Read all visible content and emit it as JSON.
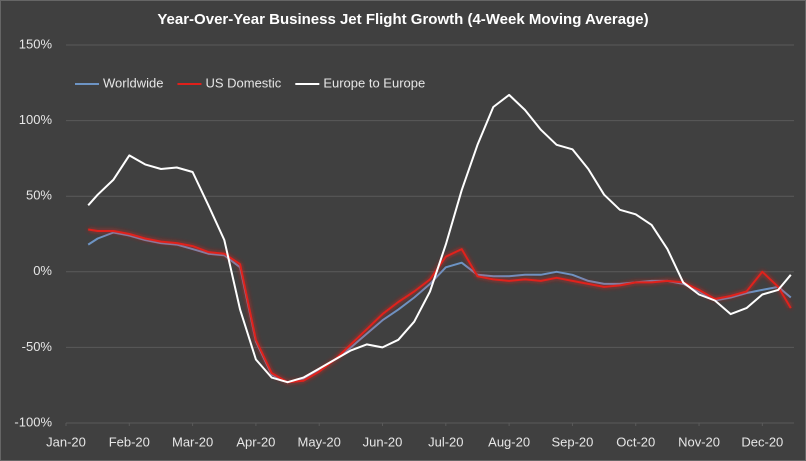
{
  "chart_data": {
    "type": "line",
    "title": "Year-Over-Year Business Jet Flight Growth (4-Week Moving Average)",
    "x": [
      0.35,
      0.5,
      0.75,
      1.0,
      1.25,
      1.5,
      1.75,
      2.0,
      2.25,
      2.5,
      2.75,
      3.0,
      3.25,
      3.5,
      3.75,
      4.0,
      4.25,
      4.5,
      4.75,
      5.0,
      5.25,
      5.5,
      5.75,
      6.0,
      6.25,
      6.5,
      6.75,
      7.0,
      7.25,
      7.5,
      7.75,
      8.0,
      8.25,
      8.5,
      8.75,
      9.0,
      9.25,
      9.5,
      9.75,
      10.0,
      10.25,
      10.5,
      10.75,
      11.0,
      11.25,
      11.45
    ],
    "series": [
      {
        "name": "Worldwide",
        "color": "#6d94c4",
        "values": [
          18,
          22,
          26,
          24,
          21,
          19,
          18,
          15,
          12,
          11,
          3,
          -46,
          -68,
          -73,
          -71,
          -65,
          -58,
          -50,
          -41,
          -32,
          -25,
          -17,
          -8,
          3,
          6,
          -2,
          -3,
          -3,
          -2,
          -2,
          0,
          -2,
          -6,
          -8,
          -8,
          -7,
          -6,
          -6,
          -8,
          -13,
          -19,
          -17,
          -14,
          -12,
          -10,
          -17
        ]
      },
      {
        "name": "US Domestic",
        "color": "#e0201a",
        "values": [
          28,
          27,
          27,
          25,
          22,
          20,
          19,
          17,
          13,
          12,
          5,
          -45,
          -67,
          -73,
          -72,
          -66,
          -58,
          -48,
          -38,
          -28,
          -20,
          -13,
          -5,
          10,
          15,
          -3,
          -5,
          -6,
          -5,
          -6,
          -4,
          -6,
          -8,
          -10,
          -9,
          -7,
          -7,
          -6,
          -7,
          -12,
          -18,
          -16,
          -13,
          0,
          -10,
          -24
        ]
      },
      {
        "name": "Europe to Europe",
        "color": "#ffffff",
        "values": [
          44,
          51,
          61,
          77,
          71,
          68,
          69,
          66,
          44,
          21,
          -25,
          -58,
          -70,
          -73,
          -70,
          -64,
          -58,
          -52,
          -48,
          -50,
          -45,
          -33,
          -13,
          18,
          54,
          84,
          109,
          117,
          107,
          94,
          84,
          81,
          68,
          51,
          41,
          38,
          31,
          15,
          -7,
          -15,
          -19,
          -28,
          -24,
          -15,
          -12,
          -2
        ]
      }
    ],
    "xlim": [
      0,
      11.5
    ],
    "xticks": [
      {
        "value": 0,
        "label": "Jan-20"
      },
      {
        "value": 1,
        "label": "Feb-20"
      },
      {
        "value": 2,
        "label": "Mar-20"
      },
      {
        "value": 3,
        "label": "Apr-20"
      },
      {
        "value": 4,
        "label": "May-20"
      },
      {
        "value": 5,
        "label": "Jun-20"
      },
      {
        "value": 6,
        "label": "Jul-20"
      },
      {
        "value": 7,
        "label": "Aug-20"
      },
      {
        "value": 8,
        "label": "Sep-20"
      },
      {
        "value": 9,
        "label": "Oct-20"
      },
      {
        "value": 10,
        "label": "Nov-20"
      },
      {
        "value": 11,
        "label": "Dec-20"
      }
    ],
    "ylim": [
      -100,
      150
    ],
    "yticks": [
      {
        "value": -100,
        "label": "-100%"
      },
      {
        "value": -50,
        "label": "-50%"
      },
      {
        "value": 0,
        "label": "0%"
      },
      {
        "value": 50,
        "label": "50%"
      },
      {
        "value": 100,
        "label": "100%"
      },
      {
        "value": 150,
        "label": "150%"
      }
    ],
    "grid": true,
    "legend": "top-left"
  }
}
